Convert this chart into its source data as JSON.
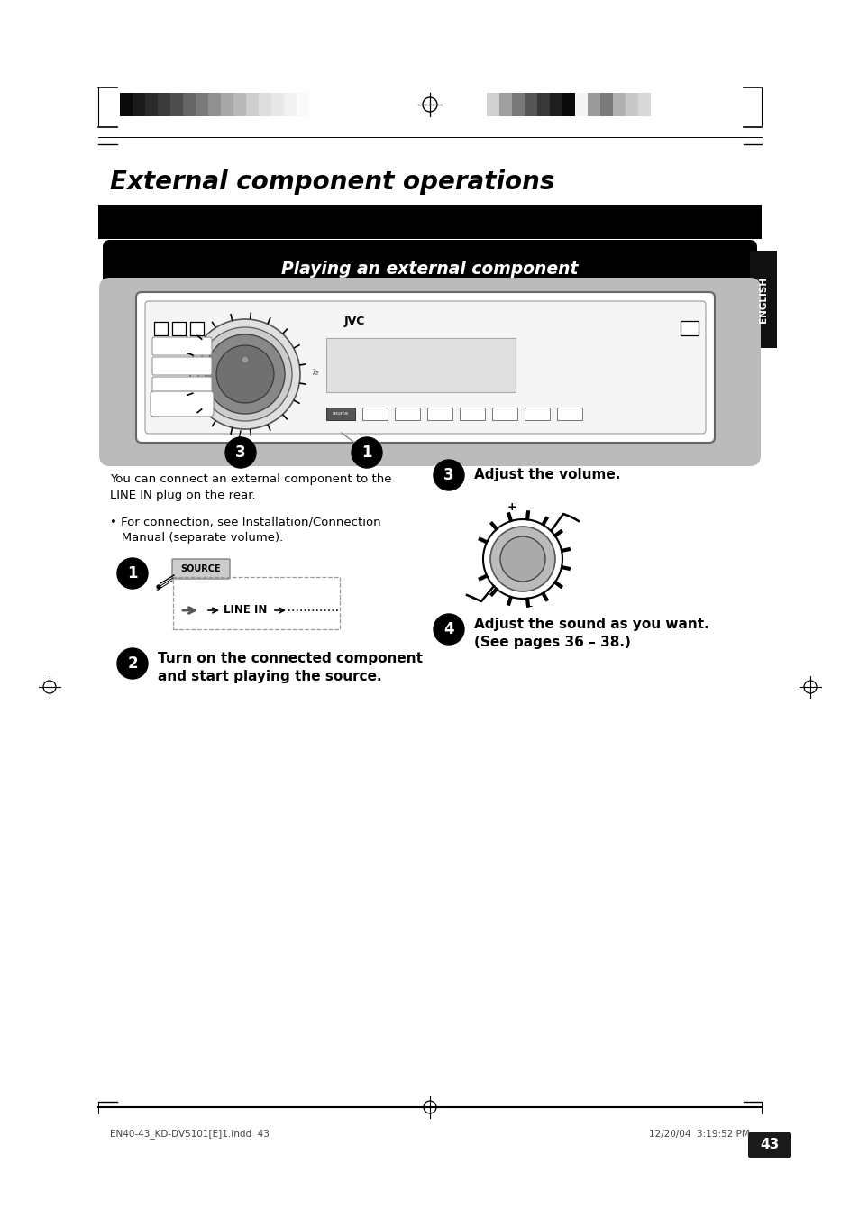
{
  "title": "External component operations",
  "section_title": "Playing an external component",
  "bg_color": "#ffffff",
  "bar_left": [
    "#0a0a0a",
    "#1a1a1a",
    "#2a2a2a",
    "#3a3a3a",
    "#4e4e4e",
    "#666666",
    "#7a7a7a",
    "#909090",
    "#a8a8a8",
    "#b8b8b8",
    "#cecece",
    "#dddddd",
    "#e8e8e8",
    "#f2f2f2",
    "#fafafa"
  ],
  "bar_right": [
    "#d0d0d0",
    "#a0a0a0",
    "#787878",
    "#555555",
    "#383838",
    "#1e1e1e",
    "#0a0a0a",
    "#f5f5f5",
    "#9a9a9a",
    "#7a7a7a",
    "#b0b0b0",
    "#c8c8c8",
    "#d8d8d8"
  ],
  "tab_text": "ENGLISH",
  "body_text_1a": "You can connect an external component to the",
  "body_text_1b": "LINE IN plug on the rear.",
  "bullet_text_a": "• For connection, see Installation/Connection",
  "bullet_text_b": "   Manual (separate volume).",
  "step2_text_a": "Turn on the connected component",
  "step2_text_b": "and start playing the source.",
  "step3_text": "Adjust the volume.",
  "step4_text_a": "Adjust the sound as you want.",
  "step4_text_b": "(See pages 36 – 38.)",
  "source_label": "SOURCE",
  "line_in_label": "LINE IN",
  "jvc_label": "JVC",
  "footer_left": "EN40-43_KD-DV5101[E]1.indd  43",
  "footer_right": "12/20/04  3:19:52 PM",
  "page_number": "43",
  "device_bg_color": "#bbbbbb",
  "device_body_color": "#ffffff",
  "device_border_color": "#666666",
  "knob_outer": "#c8c8c8",
  "knob_mid": "#989898",
  "knob_inner": "#787878",
  "display_color": "#e0e0e0"
}
